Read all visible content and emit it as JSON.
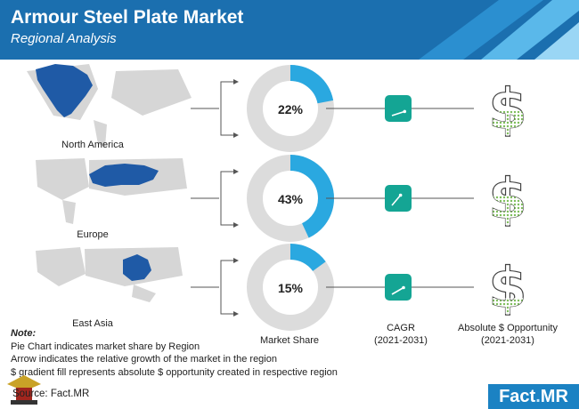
{
  "header": {
    "title": "Armour Steel Plate Market",
    "subtitle": "Regional Analysis"
  },
  "colors": {
    "header_blue": "#1b6faf",
    "donut_share": "#2aa8e0",
    "donut_rest": "#dcdcdc",
    "cagr_tile": "#14a594",
    "map_land": "#d6d6d6",
    "map_highlight": "#1f5aa6",
    "dollar_fill": "#7cbd5a"
  },
  "chart_data": {
    "type": "pie",
    "title": "Armour Steel Plate Market",
    "subtitle": "Regional Analysis",
    "categories": [
      "North America",
      "Europe",
      "East Asia"
    ],
    "series": [
      {
        "name": "Market Share",
        "values": [
          22,
          43,
          15
        ]
      }
    ],
    "value_labels": [
      "22%",
      "43%",
      "15%"
    ],
    "cagr_arrow_icons": [
      "arrow-up-right-icon",
      "arrow-up-right-icon",
      "arrow-up-right-icon"
    ],
    "opportunity_fill_fraction": [
      0.45,
      0.55,
      0.3
    ]
  },
  "columns": {
    "share": "Market Share",
    "cagr_line1": "CAGR",
    "cagr_line2": "(2021-2031)",
    "opp_line1": "Absolute $ Opportunity",
    "opp_line2": "(2021-2031)"
  },
  "note": {
    "heading": "Note:",
    "line1": "Pie Chart indicates market share by Region",
    "line2": "Arrow indicates the relative growth of the market in the region",
    "line3": "$ gradient fill represents absolute $ opportunity created in respective region"
  },
  "footer": {
    "source": "Source: Fact.MR",
    "brand_a": "Fact",
    "brand_dot": ".",
    "brand_b": "MR"
  }
}
